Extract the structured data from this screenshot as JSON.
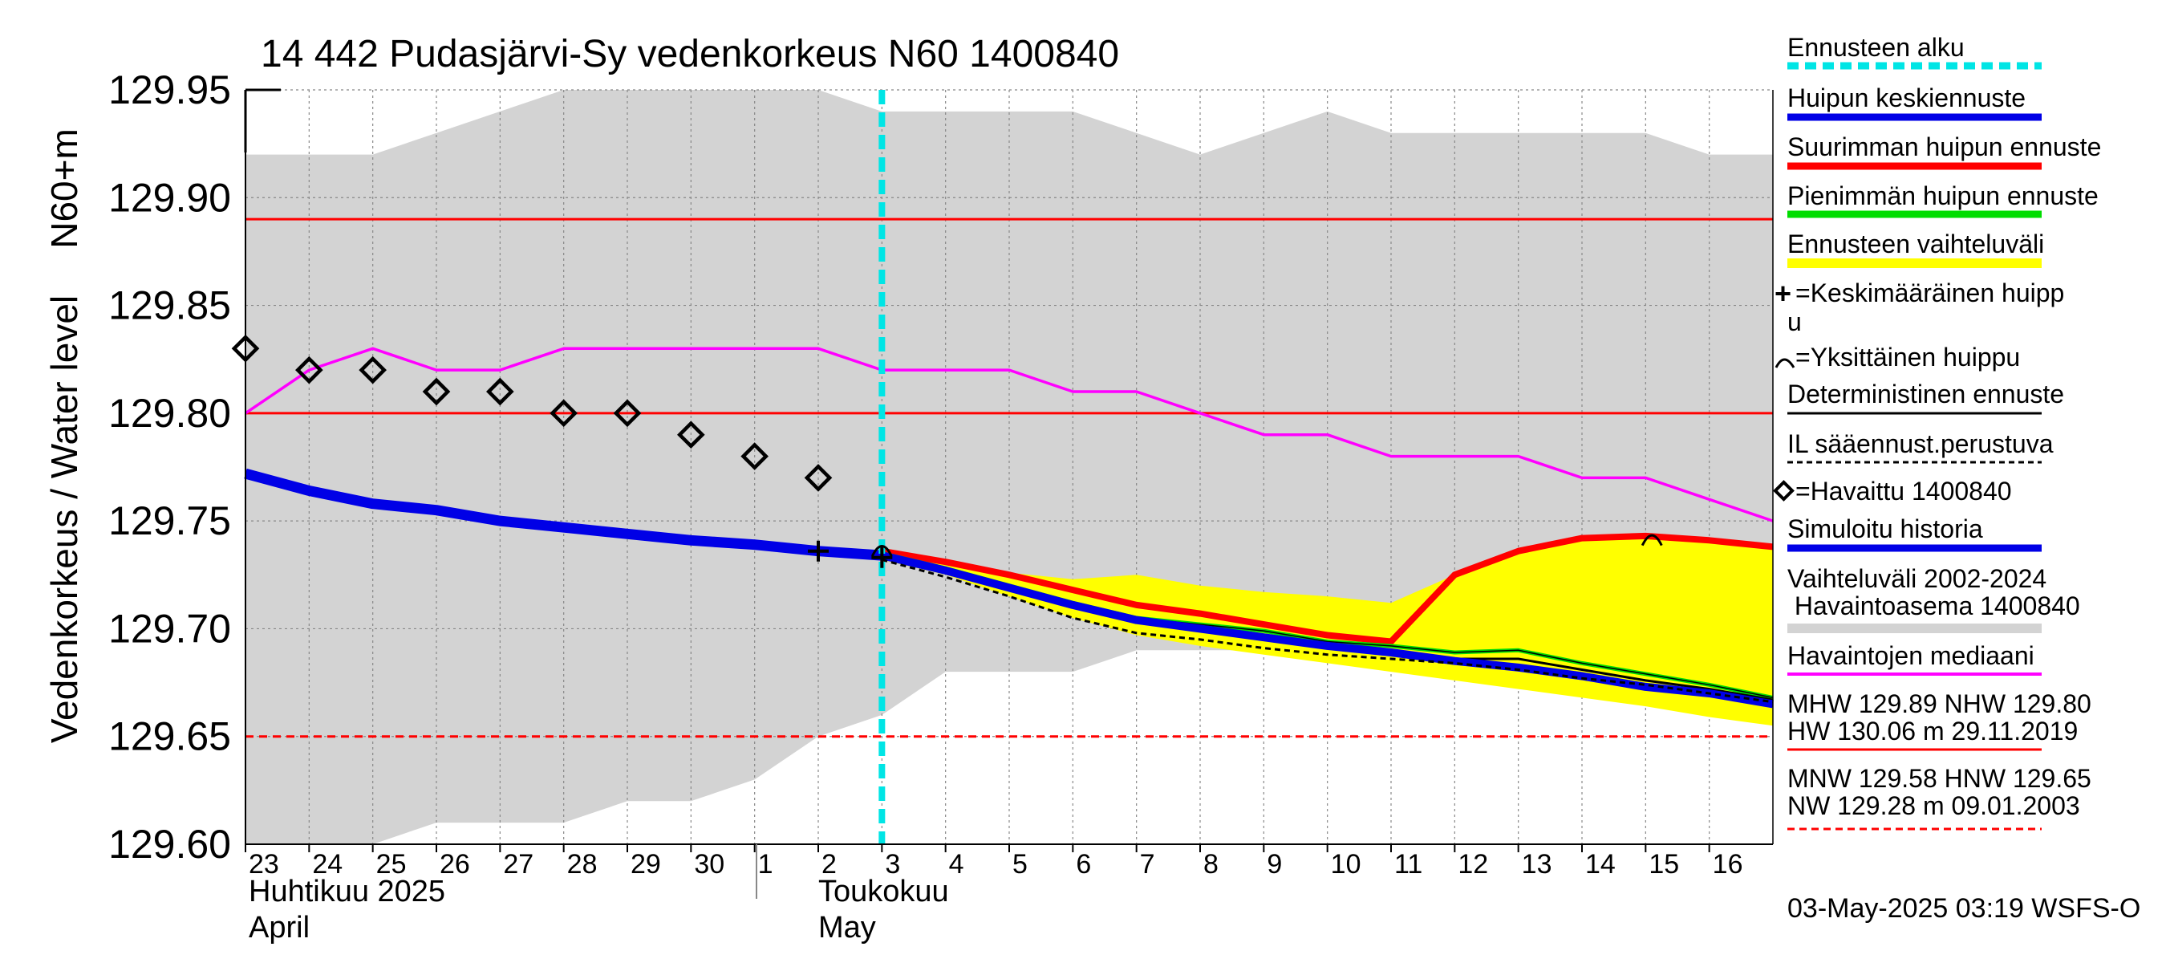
{
  "chart_data": {
    "type": "line",
    "title": "14 442 Pudasjärvi-Sy vedenkorkeus N60 1400840",
    "ylabel_outer": "Vedenkorkeus / Water level",
    "ylabel_inner": "N60+m",
    "ylim": [
      129.6,
      129.95
    ],
    "yticks": [
      "129.60",
      "129.65",
      "129.70",
      "129.75",
      "129.80",
      "129.85",
      "129.90",
      "129.95"
    ],
    "ytick_values": [
      129.6,
      129.65,
      129.7,
      129.75,
      129.8,
      129.85,
      129.9,
      129.95
    ],
    "x_days": [
      "23",
      "24",
      "25",
      "26",
      "27",
      "28",
      "29",
      "30",
      "1",
      "2",
      "3",
      "4",
      "5",
      "6",
      "7",
      "8",
      "9",
      "10",
      "11",
      "12",
      "13",
      "14",
      "15",
      "16"
    ],
    "month_labels": {
      "april_fi": "Huhtikuu  2025",
      "april_en": "April",
      "may_fi": "Toukokuu",
      "may_en": "May"
    },
    "forecast_start_day": 10,
    "variation_band": {
      "upper": [
        129.92,
        129.92,
        129.92,
        129.93,
        129.94,
        129.95,
        129.95,
        129.95,
        129.95,
        129.95,
        129.94,
        129.94,
        129.94,
        129.94,
        129.93,
        129.92,
        129.93,
        129.94,
        129.93,
        129.93,
        129.93,
        129.93,
        129.93,
        129.92,
        129.92
      ],
      "lower": [
        129.6,
        129.6,
        129.6,
        129.61,
        129.61,
        129.61,
        129.62,
        129.62,
        129.63,
        129.65,
        129.66,
        129.68,
        129.68,
        129.68,
        129.69,
        129.69,
        129.69,
        129.69,
        129.69,
        129.69,
        129.69,
        129.69,
        129.69,
        129.68,
        129.67
      ]
    },
    "forecast_range": {
      "x": [
        10,
        11,
        12,
        13,
        14,
        15,
        16,
        17,
        18,
        19,
        20,
        21,
        22,
        23,
        24
      ],
      "upper": [
        129.737,
        129.732,
        129.726,
        129.723,
        129.725,
        129.72,
        129.717,
        129.715,
        129.712,
        129.725,
        129.735,
        129.741,
        129.743,
        129.741,
        129.738
      ],
      "lower": [
        129.732,
        129.725,
        129.715,
        129.705,
        129.697,
        129.692,
        129.688,
        129.684,
        129.68,
        129.676,
        129.672,
        129.668,
        129.664,
        129.659,
        129.655
      ]
    },
    "series": [
      {
        "name": "Simuloitu historia",
        "color": "#0000e6",
        "x": [
          0,
          1,
          2,
          3,
          4,
          5,
          6,
          7,
          8,
          9,
          10
        ],
        "values": [
          129.772,
          129.764,
          129.758,
          129.755,
          129.75,
          129.747,
          129.744,
          129.741,
          129.739,
          129.736,
          129.734
        ]
      },
      {
        "name": "Havaintojen mediaani",
        "color": "#ff00ff",
        "x": [
          0,
          1,
          2,
          3,
          4,
          5,
          6,
          7,
          8,
          9,
          10,
          11,
          12,
          13,
          14,
          15,
          16,
          17,
          18,
          19,
          20,
          21,
          22,
          23,
          24
        ],
        "values": [
          129.8,
          129.82,
          129.83,
          129.82,
          129.82,
          129.83,
          129.83,
          129.83,
          129.83,
          129.83,
          129.82,
          129.82,
          129.82,
          129.81,
          129.81,
          129.8,
          129.79,
          129.79,
          129.78,
          129.78,
          129.78,
          129.77,
          129.77,
          129.76,
          129.75
        ]
      },
      {
        "name": "Suurimman huipun ennuste",
        "color": "#ff0000",
        "x": [
          10,
          11,
          12,
          13,
          14,
          15,
          16,
          17,
          18,
          19,
          20,
          21,
          22,
          23,
          24
        ],
        "values": [
          129.736,
          129.731,
          129.725,
          129.718,
          129.711,
          129.707,
          129.702,
          129.697,
          129.694,
          129.725,
          129.736,
          129.742,
          129.743,
          129.741,
          129.738
        ]
      },
      {
        "name": "Pienimmän huipun ennuste",
        "color": "#00dd00",
        "x": [
          10,
          11,
          12,
          13,
          14,
          15,
          16,
          17,
          18,
          19,
          20,
          21,
          22,
          23,
          24
        ],
        "values": [
          129.735,
          129.728,
          129.72,
          129.712,
          129.705,
          129.702,
          129.699,
          129.694,
          129.692,
          129.689,
          129.69,
          129.684,
          129.679,
          129.674,
          129.668
        ]
      },
      {
        "name": "Deterministinen ennuste",
        "color": "#000000",
        "x": [
          10,
          11,
          12,
          13,
          14,
          15,
          16,
          17,
          18,
          19,
          20,
          21,
          22,
          23,
          24
        ],
        "values": [
          129.734,
          129.727,
          129.719,
          129.711,
          129.704,
          129.7,
          129.697,
          129.693,
          129.69,
          129.686,
          129.686,
          129.681,
          129.676,
          129.672,
          129.667
        ]
      },
      {
        "name": "Huipun keskiennuste",
        "color": "#0000e6",
        "x": [
          10,
          11,
          12,
          13,
          14,
          15,
          16,
          17,
          18,
          19,
          20,
          21,
          22,
          23,
          24
        ],
        "values": [
          129.734,
          129.727,
          129.719,
          129.711,
          129.704,
          129.7,
          129.696,
          129.692,
          129.689,
          129.685,
          129.682,
          129.678,
          129.673,
          129.67,
          129.665
        ]
      },
      {
        "name": "IL sääennust.perustuva",
        "color": "#000000",
        "dashed": true,
        "x": [
          10,
          11,
          12,
          13,
          14,
          15,
          16,
          17,
          18,
          19,
          20,
          21,
          22,
          23,
          24
        ],
        "values": [
          129.732,
          129.724,
          129.715,
          129.705,
          129.698,
          129.695,
          129.691,
          129.688,
          129.686,
          129.684,
          129.681,
          129.677,
          129.674,
          129.67,
          129.666
        ]
      }
    ],
    "observed": {
      "name": "Havaittu 1400840",
      "x": [
        0,
        1,
        2,
        3,
        4,
        5,
        6,
        7,
        8,
        9
      ],
      "values": [
        129.83,
        129.82,
        129.82,
        129.81,
        129.81,
        129.8,
        129.8,
        129.79,
        129.78,
        129.77
      ]
    },
    "mean_peak_markers": [
      {
        "x": 9,
        "value": 129.736
      },
      {
        "x": 10,
        "value": 129.733
      }
    ],
    "single_peak_markers": [
      {
        "x": 10,
        "value": 129.737
      },
      {
        "x": 22.1,
        "value": 129.742
      }
    ],
    "reference_lines": [
      {
        "name": "MHW",
        "value": 129.89,
        "style": "solid"
      },
      {
        "name": "NHW",
        "value": 129.8,
        "style": "solid"
      },
      {
        "name": "HNW",
        "value": 129.65,
        "style": "dashed"
      }
    ]
  },
  "legend": {
    "forecast_start": "Ennusteen alku",
    "peak_mean": "Huipun keskiennuste",
    "max_peak": "Suurimman huipun ennuste",
    "min_peak": "Pienimmän huipun ennuste",
    "range": "Ennusteen vaihteluväli",
    "mean_peak_marker_l1": "=Keskimääräinen huipp",
    "mean_peak_marker_l2": "u",
    "single_peak_marker": "=Yksittäinen huippu",
    "deterministic": "Deterministinen ennuste",
    "il_based": "IL sääennust.perustuva",
    "observed": "=Havaittu 1400840",
    "simulated": "Simuloitu historia",
    "variation_l1": "Vaihteluväli 2002-2024",
    "variation_l2": " Havaintoasema 1400840",
    "median": "Havaintojen mediaani",
    "stats_high_l1": "MHW 129.89 NHW 129.80",
    "stats_high_l2": "HW 130.06 m 29.11.2019",
    "stats_low_l1": "MNW 129.58 HNW 129.65",
    "stats_low_l2": "NW 129.28 m 09.01.2003"
  },
  "footer": "03-May-2025 03:19 WSFS-O",
  "colors": {
    "band": "#d3d3d3",
    "forecast_range": "#ffff00",
    "forecast_start": "#00e5e5",
    "ref_line": "#ff0000"
  }
}
